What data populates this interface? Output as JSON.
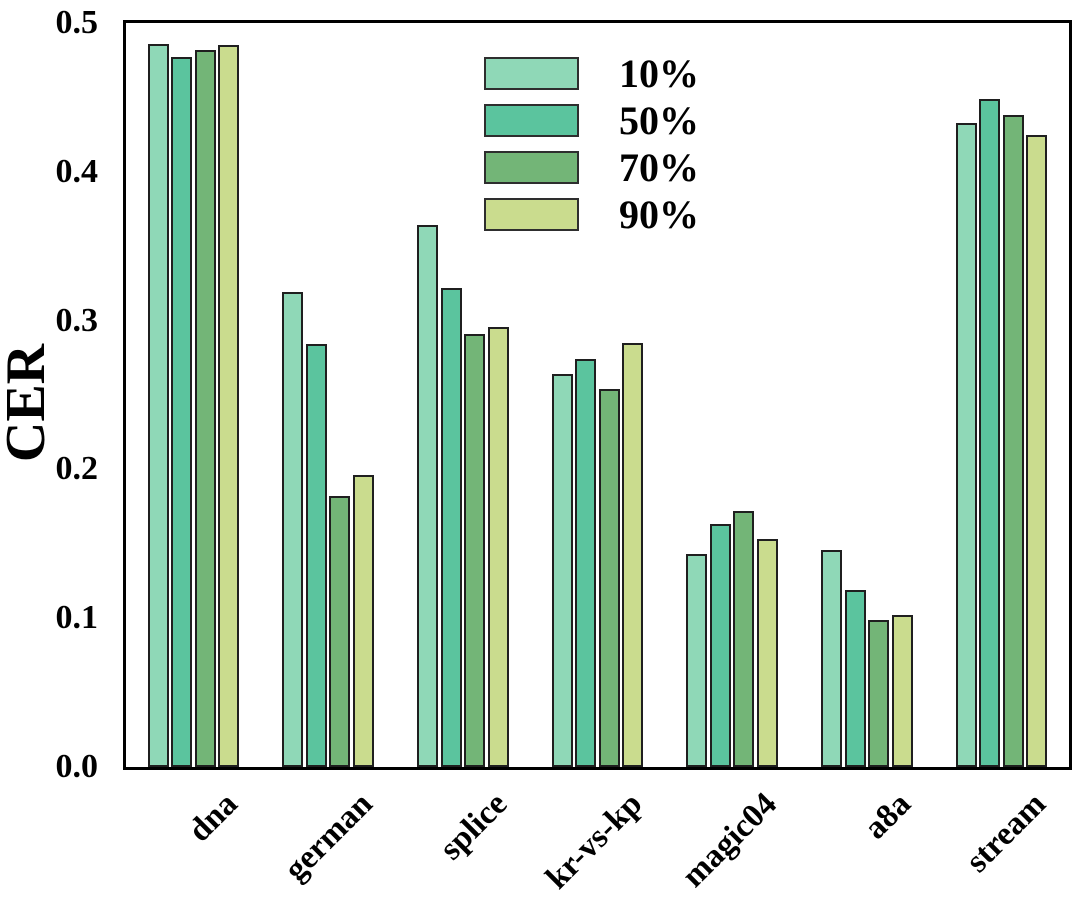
{
  "chart_data": {
    "type": "bar",
    "title": "",
    "xlabel": "",
    "ylabel": "CER",
    "ylim": [
      0.0,
      0.5
    ],
    "yticks": [
      "0.0",
      "0.1",
      "0.2",
      "0.3",
      "0.4",
      "0.5"
    ],
    "grid": false,
    "legend_position": "upper-center-inside",
    "categories": [
      "dna",
      "german",
      "splice",
      "kr-vs-kp",
      "magic04",
      "a8a",
      "stream"
    ],
    "series": [
      {
        "name": "10%",
        "color": "#8FD8B7",
        "values": [
          0.486,
          0.319,
          0.364,
          0.264,
          0.143,
          0.146,
          0.433
        ]
      },
      {
        "name": "50%",
        "color": "#5BC49E",
        "values": [
          0.477,
          0.284,
          0.322,
          0.274,
          0.163,
          0.119,
          0.449
        ]
      },
      {
        "name": "70%",
        "color": "#73B577",
        "values": [
          0.482,
          0.182,
          0.291,
          0.254,
          0.172,
          0.099,
          0.438
        ]
      },
      {
        "name": "90%",
        "color": "#CADC8E",
        "values": [
          0.485,
          0.196,
          0.296,
          0.285,
          0.153,
          0.102,
          0.425
        ]
      }
    ],
    "colors": {
      "bar_edge": "#1f1f1f",
      "axis": "#000000",
      "background": "#ffffff"
    }
  }
}
